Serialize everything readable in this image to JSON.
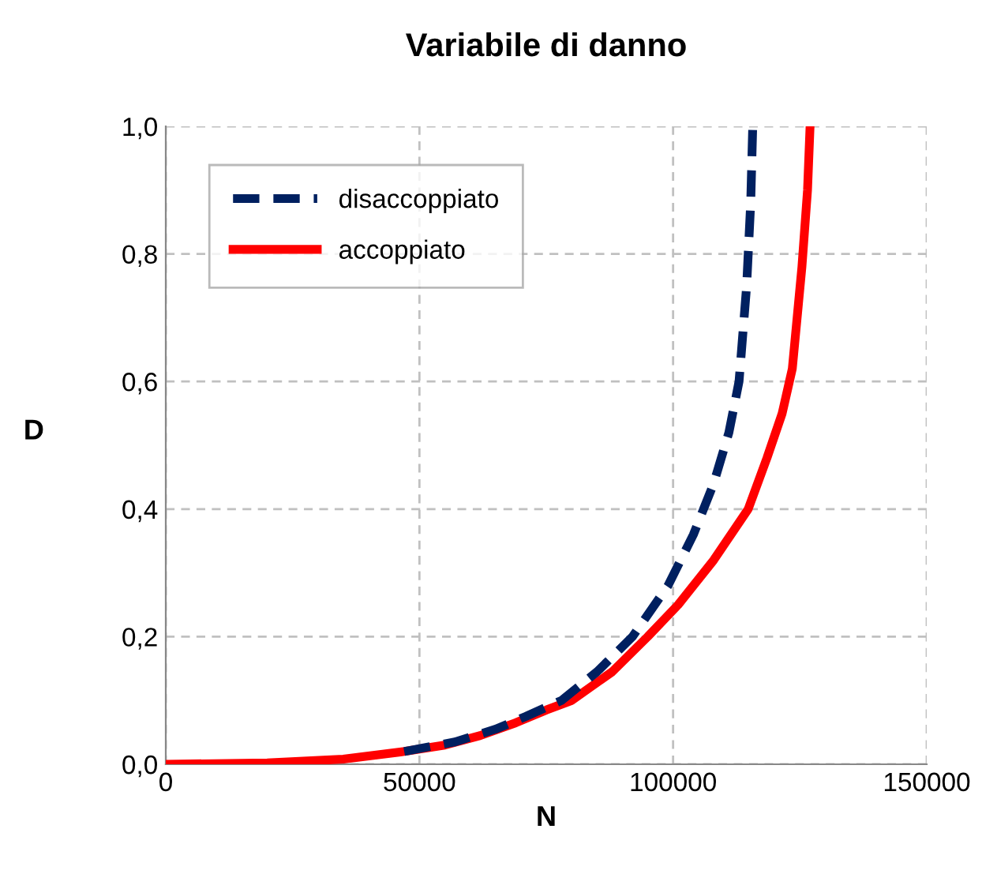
{
  "chart_data": {
    "type": "line",
    "title": "Variabile di danno",
    "xlabel": "N",
    "ylabel": "D",
    "xlim": [
      0,
      150000
    ],
    "xticks": [
      0,
      50000,
      100000,
      150000
    ],
    "ylim": [
      0,
      1.0
    ],
    "yticks": [
      {
        "value": 0,
        "label": "0,0"
      },
      {
        "value": 0.2,
        "label": "0,2"
      },
      {
        "value": 0.4,
        "label": "0,4"
      },
      {
        "value": 0.6,
        "label": "0,6"
      },
      {
        "value": 0.8,
        "label": "0,8"
      },
      {
        "value": 1.0,
        "label": "1,0"
      }
    ],
    "grid": true,
    "legend": "top left",
    "marker": "none",
    "series": [
      {
        "name": "disaccoppiato",
        "color": "#002060",
        "line_style": "dashed",
        "x": [
          47000,
          57000,
          65000,
          71000,
          78000,
          85000,
          92000,
          99000,
          104000,
          108000,
          111000,
          113000,
          114500,
          115300,
          115700
        ],
        "values": [
          0.02,
          0.035,
          0.055,
          0.075,
          0.1,
          0.145,
          0.2,
          0.28,
          0.36,
          0.44,
          0.52,
          0.6,
          0.75,
          0.88,
          1.0
        ]
      },
      {
        "name": "accoppiato",
        "color": "#ff0000",
        "line_style": "solid",
        "x": [
          0,
          20000,
          35000,
          47000,
          55000,
          62000,
          69000,
          75000,
          80000,
          88000,
          95000,
          101000,
          108000,
          114800,
          118500,
          121500,
          123500,
          125400,
          126500,
          127000
        ],
        "values": [
          0,
          0.002,
          0.008,
          0.02,
          0.03,
          0.045,
          0.065,
          0.085,
          0.1,
          0.145,
          0.2,
          0.25,
          0.32,
          0.4,
          0.48,
          0.55,
          0.62,
          0.78,
          0.9,
          1.0
        ]
      }
    ]
  }
}
